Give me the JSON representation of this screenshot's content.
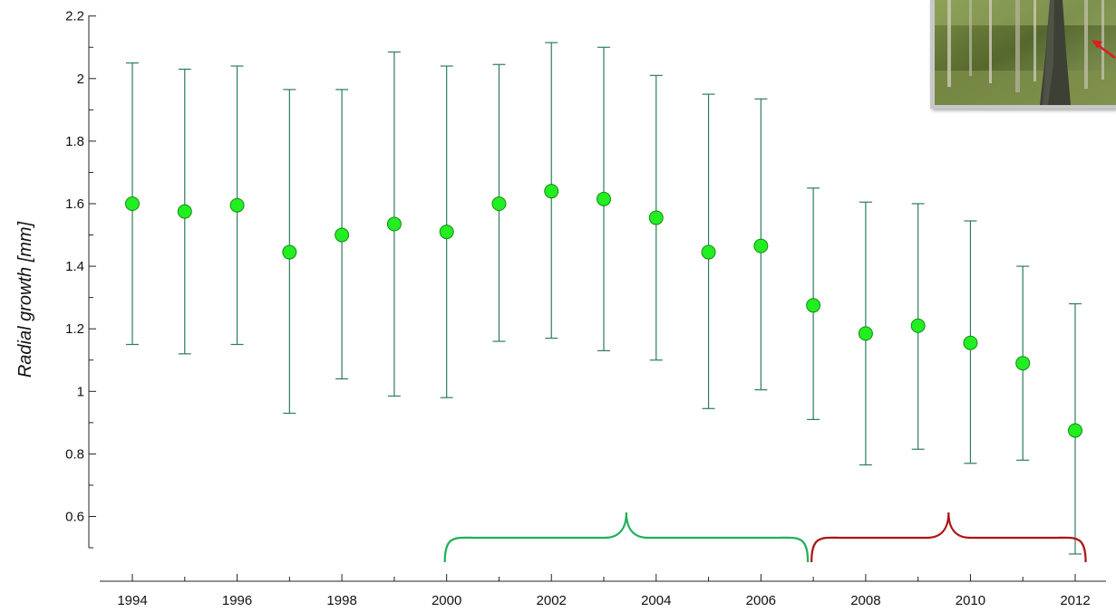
{
  "chart_data": {
    "type": "scatter",
    "title": "",
    "xlabel": "",
    "ylabel": "Radial growth [mm]",
    "xlim": [
      1993.5,
      2012.5
    ],
    "ylim": [
      0.47,
      2.2
    ],
    "x_ticks": [
      1994,
      1996,
      1998,
      2000,
      2002,
      2004,
      2006,
      2008,
      2010,
      2012
    ],
    "y_ticks": [
      0.6,
      0.8,
      1,
      1.2,
      1.4,
      1.6,
      1.8,
      2,
      2.2
    ],
    "y_tick_labels": [
      "0.6",
      "0.8",
      "1",
      "1.2",
      "1.4",
      "1.6",
      "1.8",
      "2",
      "2.2"
    ],
    "grid": false,
    "series": [
      {
        "points": [
          {
            "x": 1994,
            "y": 1.6,
            "low": 1.15,
            "high": 2.05
          },
          {
            "x": 1995,
            "y": 1.575,
            "low": 1.12,
            "high": 2.03
          },
          {
            "x": 1996,
            "y": 1.595,
            "low": 1.15,
            "high": 2.04
          },
          {
            "x": 1997,
            "y": 1.445,
            "low": 0.93,
            "high": 1.965
          },
          {
            "x": 1998,
            "y": 1.5,
            "low": 1.04,
            "high": 1.965
          },
          {
            "x": 1999,
            "y": 1.535,
            "low": 0.985,
            "high": 2.085
          },
          {
            "x": 2000,
            "y": 1.51,
            "low": 0.98,
            "high": 2.04
          },
          {
            "x": 2001,
            "y": 1.6,
            "low": 1.16,
            "high": 2.045
          },
          {
            "x": 2002,
            "y": 1.64,
            "low": 1.17,
            "high": 2.115
          },
          {
            "x": 2003,
            "y": 1.615,
            "low": 1.13,
            "high": 2.1
          },
          {
            "x": 2004,
            "y": 1.555,
            "low": 1.1,
            "high": 2.01
          },
          {
            "x": 2005,
            "y": 1.445,
            "low": 0.945,
            "high": 1.95
          },
          {
            "x": 2006,
            "y": 1.465,
            "low": 1.005,
            "high": 1.935
          },
          {
            "x": 2007,
            "y": 1.275,
            "low": 0.91,
            "high": 1.65
          },
          {
            "x": 2008,
            "y": 1.185,
            "low": 0.765,
            "high": 1.605
          },
          {
            "x": 2009,
            "y": 1.21,
            "low": 0.815,
            "high": 1.6
          },
          {
            "x": 2010,
            "y": 1.155,
            "low": 0.77,
            "high": 1.545
          },
          {
            "x": 2011,
            "y": 1.09,
            "low": 0.78,
            "high": 1.4
          },
          {
            "x": 2012,
            "y": 0.875,
            "low": 0.48,
            "high": 1.28
          }
        ]
      }
    ],
    "annotations": [
      {
        "kind": "curly-brace",
        "from": 2000,
        "to": 2007,
        "color": "#1fb05a"
      },
      {
        "kind": "curly-brace",
        "from": 2007,
        "to": 2012.2,
        "color": "#b01313"
      }
    ]
  },
  "colors": {
    "marker_fill": "#22ee22",
    "marker_edge": "#138a13",
    "errorbar": "#2e7d5a",
    "axis": "#222222"
  },
  "inset_photo": {
    "icon": "forest-photo-icon"
  }
}
